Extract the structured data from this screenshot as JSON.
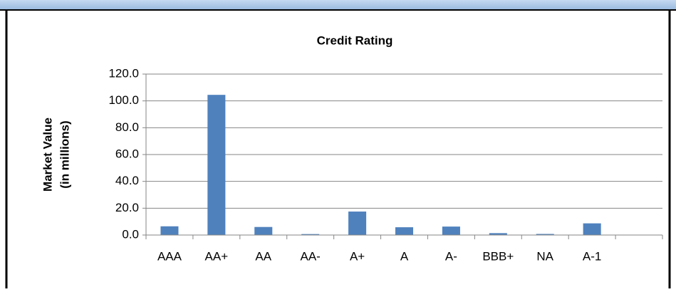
{
  "chart_data": {
    "type": "bar",
    "title": "Credit Rating",
    "y_label": [
      "Market Value",
      "(in millions)"
    ],
    "categories": [
      "AAA",
      "AA+",
      "AA",
      "AA-",
      "A+",
      "A",
      "A-",
      "BBB+",
      "NA",
      "A-1",
      null
    ],
    "values": [
      6.5,
      104.5,
      6,
      0.7,
      17.5,
      5.8,
      6.3,
      1.4,
      0.8,
      8.7,
      null
    ],
    "color": "#4f81bd",
    "ylim": [
      0,
      120
    ],
    "yticks": [
      {
        "value": 0,
        "label": "0.0"
      },
      {
        "value": 20,
        "label": "20.0"
      },
      {
        "value": 40,
        "label": "40.0"
      },
      {
        "value": 60,
        "label": "60.0"
      },
      {
        "value": 80,
        "label": "80.0"
      },
      {
        "value": 100,
        "label": "100.0"
      },
      {
        "value": 120,
        "label": "120.0"
      }
    ],
    "grid": true
  }
}
